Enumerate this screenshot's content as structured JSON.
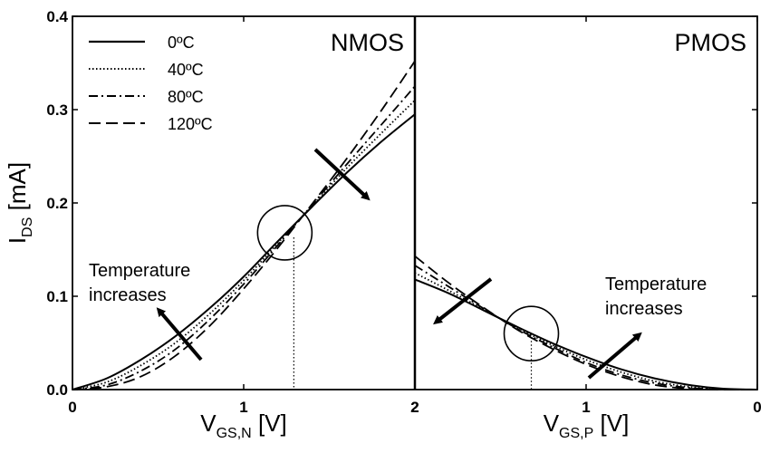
{
  "chart_data": {
    "type": "line",
    "ylabel": {
      "main": "I",
      "sub": "DS",
      "unit": " [mA]"
    },
    "ylim": [
      0,
      0.4
    ],
    "yticks": [
      "0.0",
      "0.1",
      "0.2",
      "0.3",
      "0.4"
    ],
    "legend": {
      "placement": "top-left",
      "entries": [
        {
          "label": "0ºC",
          "style": "solid"
        },
        {
          "label": "40ºC",
          "style": "dotted"
        },
        {
          "label": "80ºC",
          "style": "dashdot"
        },
        {
          "label": "120ºC",
          "style": "dashed"
        }
      ]
    },
    "panels": [
      {
        "label": "NMOS",
        "xlabel": {
          "main": "V",
          "sub": "GS,N",
          "unit": " [V]"
        },
        "xlim": [
          0,
          2
        ],
        "xticks": [
          {
            "value": 0,
            "label": "0"
          },
          {
            "value": 1,
            "label": "1"
          },
          {
            "value": 2,
            "label": "2"
          }
        ],
        "annotation": "Temperature increases",
        "annotation_lines": [
          "Temperature",
          "increases"
        ],
        "crossover": {
          "x": 1.24,
          "y": 0.168
        },
        "series": [
          {
            "name": "0ºC",
            "style": "solid",
            "x": [
              0,
              0.2,
              0.4,
              0.6,
              0.8,
              1.0,
              1.2,
              1.4,
              1.6,
              1.8,
              2.0
            ],
            "y": [
              0,
              0.012,
              0.032,
              0.057,
              0.087,
              0.121,
              0.159,
              0.196,
              0.232,
              0.265,
              0.295
            ]
          },
          {
            "name": "40ºC",
            "style": "dotted",
            "x": [
              0,
              0.2,
              0.4,
              0.6,
              0.8,
              1.0,
              1.2,
              1.4,
              1.6,
              1.8,
              2.0
            ],
            "y": [
              0,
              0.008,
              0.026,
              0.05,
              0.081,
              0.117,
              0.157,
              0.197,
              0.237,
              0.274,
              0.31
            ]
          },
          {
            "name": "80ºC",
            "style": "dashdot",
            "x": [
              0,
              0.2,
              0.4,
              0.6,
              0.8,
              1.0,
              1.2,
              1.4,
              1.6,
              1.8,
              2.0
            ],
            "y": [
              0,
              0.005,
              0.02,
              0.043,
              0.075,
              0.113,
              0.155,
              0.198,
              0.241,
              0.283,
              0.325
            ]
          },
          {
            "name": "120ºC",
            "style": "dashed",
            "x": [
              0,
              0.2,
              0.4,
              0.6,
              0.8,
              1.0,
              1.2,
              1.4,
              1.6,
              1.8,
              2.0
            ],
            "y": [
              0,
              0.003,
              0.014,
              0.036,
              0.068,
              0.108,
              0.152,
              0.199,
              0.247,
              0.298,
              0.352
            ]
          }
        ]
      },
      {
        "label": "PMOS",
        "xlabel": {
          "main": "V",
          "sub": "GS,P",
          "unit": " [V]"
        },
        "xlim": [
          2,
          0
        ],
        "xticks": [
          {
            "value": 2,
            "label": "2"
          },
          {
            "value": 1,
            "label": "1"
          },
          {
            "value": 0,
            "label": "0"
          }
        ],
        "annotation": "Temperature increases",
        "annotation_lines": [
          "Temperature",
          "increases"
        ],
        "crossover": {
          "x": 1.32,
          "y": 0.06
        },
        "series": [
          {
            "name": "0ºC",
            "style": "solid",
            "x": [
              2.0,
              1.8,
              1.6,
              1.4,
              1.2,
              1.0,
              0.8,
              0.6,
              0.4,
              0.2,
              0.0
            ],
            "y": [
              0.118,
              0.103,
              0.085,
              0.067,
              0.05,
              0.035,
              0.022,
              0.012,
              0.005,
              0.001,
              0
            ]
          },
          {
            "name": "40ºC",
            "style": "dotted",
            "x": [
              2.0,
              1.8,
              1.6,
              1.4,
              1.2,
              1.0,
              0.8,
              0.6,
              0.4,
              0.2,
              0.0
            ],
            "y": [
              0.125,
              0.106,
              0.086,
              0.066,
              0.048,
              0.032,
              0.019,
              0.009,
              0.003,
              0.0005,
              0
            ]
          },
          {
            "name": "80ºC",
            "style": "dashdot",
            "x": [
              2.0,
              1.8,
              1.6,
              1.4,
              1.2,
              1.0,
              0.8,
              0.6,
              0.4,
              0.2,
              0.0
            ],
            "y": [
              0.133,
              0.11,
              0.087,
              0.065,
              0.046,
              0.029,
              0.016,
              0.007,
              0.002,
              0.0002,
              0
            ]
          },
          {
            "name": "120ºC",
            "style": "dashed",
            "x": [
              2.0,
              1.8,
              1.6,
              1.4,
              1.2,
              1.0,
              0.8,
              0.6,
              0.4,
              0.2,
              0.0
            ],
            "y": [
              0.143,
              0.114,
              0.088,
              0.064,
              0.044,
              0.027,
              0.014,
              0.005,
              0.001,
              0,
              0
            ]
          }
        ]
      }
    ]
  }
}
